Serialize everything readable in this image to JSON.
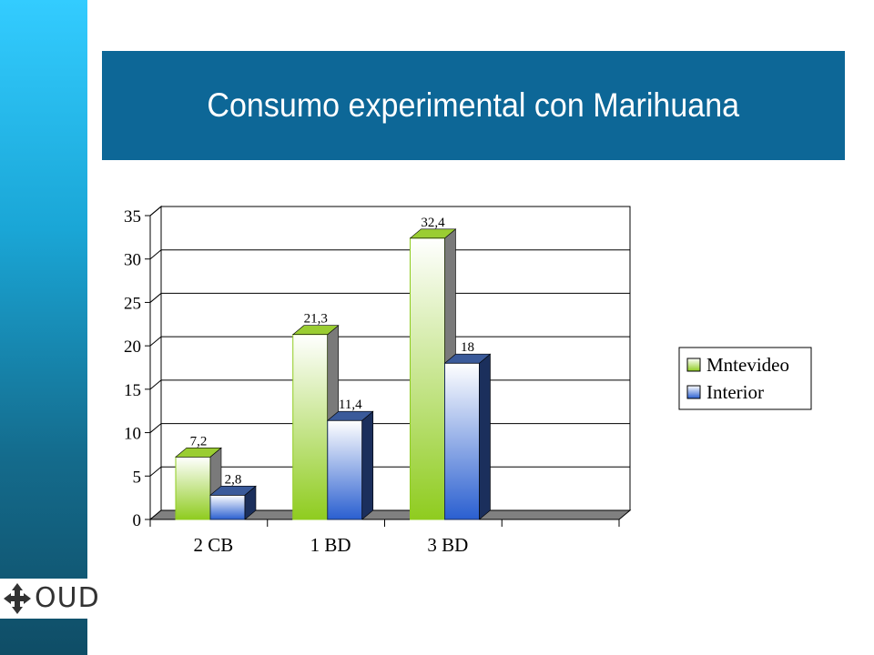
{
  "title": "Consumo experimental con Marihuana",
  "logo": {
    "text": "OUD",
    "icon": "four-arrows-icon"
  },
  "colors": {
    "side_strip": "#1aa6d6",
    "title_bar": "#0d6797",
    "series_montevideo": "#8fcc1f",
    "series_interior": "#2a5fd0"
  },
  "chart_data": {
    "type": "bar",
    "categories": [
      "2 CB",
      "1 BD",
      "3 BD"
    ],
    "series": [
      {
        "name": "Mntevideo",
        "values": [
          7.2,
          21.3,
          32.4
        ],
        "labels": [
          "7,2",
          "21,3",
          "32,4"
        ]
      },
      {
        "name": "Interior",
        "values": [
          2.8,
          11.4,
          18
        ],
        "labels": [
          "2,8",
          "11,4",
          "18"
        ]
      }
    ],
    "ylim": [
      0,
      35
    ],
    "yticks": [
      0,
      5,
      10,
      15,
      20,
      25,
      30,
      35
    ],
    "grid": true,
    "legend": "right",
    "style": "3d-columns"
  }
}
